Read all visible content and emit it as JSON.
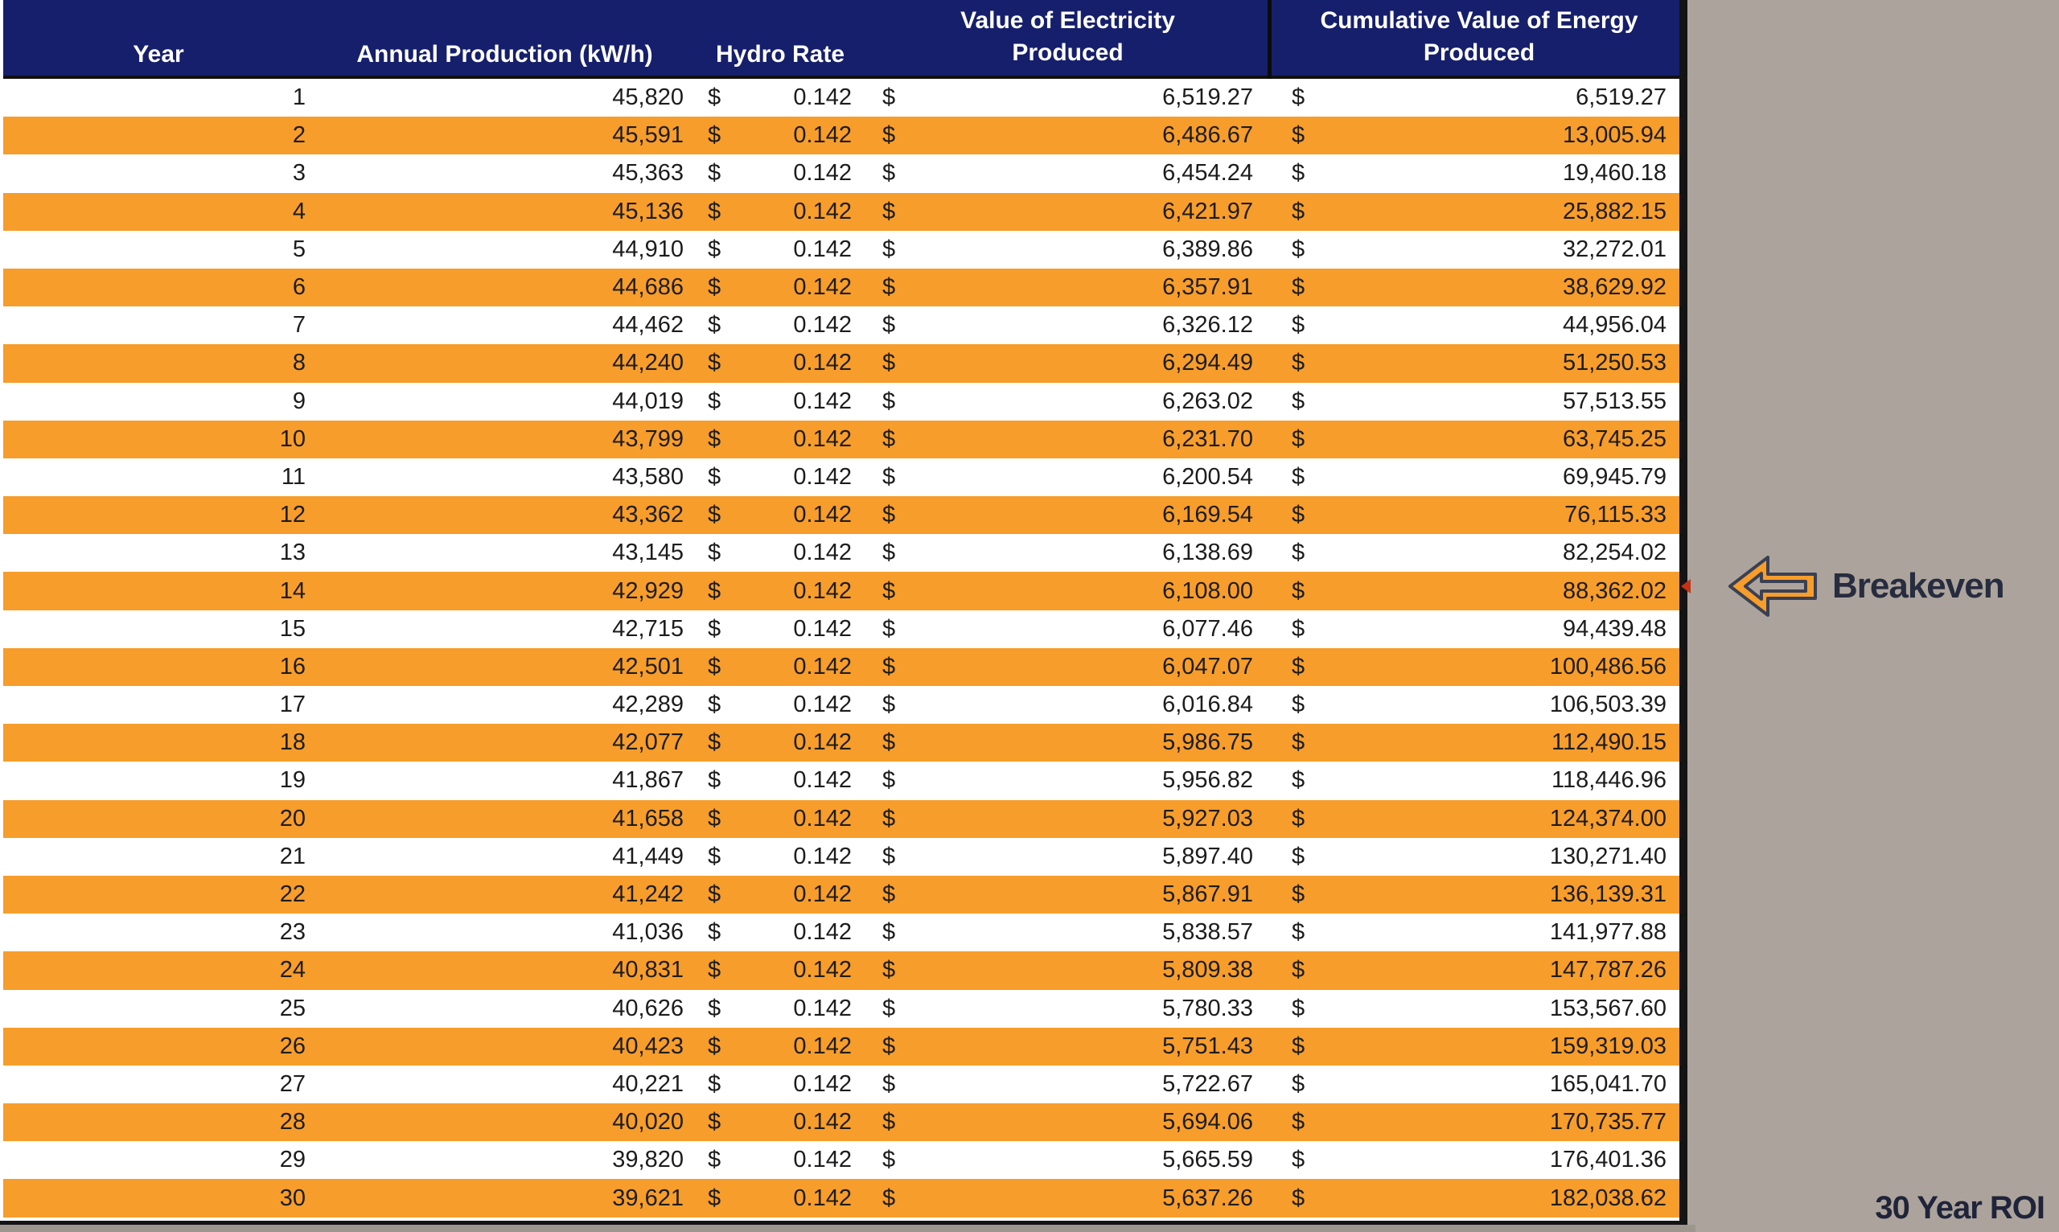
{
  "page": {
    "background_color": "#ACA49C"
  },
  "table": {
    "columns": [
      "Year",
      "Annual Production (kW/h)",
      "Hydro Rate",
      "Value of Electricity\nProduced",
      "Cumulative Value of Energy\nProduced"
    ],
    "currency_symbol": "$",
    "colors": {
      "header_bg": "#161F6B",
      "header_text": "#FFFFFF",
      "row_stripe": "#F79D2B",
      "row_base": "#FFFFFF",
      "border": "#141414"
    },
    "rows": [
      {
        "year": "1",
        "production": "45,820",
        "rate": "0.142",
        "value": "6,519.27",
        "cumulative": "6,519.27"
      },
      {
        "year": "2",
        "production": "45,591",
        "rate": "0.142",
        "value": "6,486.67",
        "cumulative": "13,005.94"
      },
      {
        "year": "3",
        "production": "45,363",
        "rate": "0.142",
        "value": "6,454.24",
        "cumulative": "19,460.18"
      },
      {
        "year": "4",
        "production": "45,136",
        "rate": "0.142",
        "value": "6,421.97",
        "cumulative": "25,882.15"
      },
      {
        "year": "5",
        "production": "44,910",
        "rate": "0.142",
        "value": "6,389.86",
        "cumulative": "32,272.01"
      },
      {
        "year": "6",
        "production": "44,686",
        "rate": "0.142",
        "value": "6,357.91",
        "cumulative": "38,629.92"
      },
      {
        "year": "7",
        "production": "44,462",
        "rate": "0.142",
        "value": "6,326.12",
        "cumulative": "44,956.04"
      },
      {
        "year": "8",
        "production": "44,240",
        "rate": "0.142",
        "value": "6,294.49",
        "cumulative": "51,250.53"
      },
      {
        "year": "9",
        "production": "44,019",
        "rate": "0.142",
        "value": "6,263.02",
        "cumulative": "57,513.55"
      },
      {
        "year": "10",
        "production": "43,799",
        "rate": "0.142",
        "value": "6,231.70",
        "cumulative": "63,745.25"
      },
      {
        "year": "11",
        "production": "43,580",
        "rate": "0.142",
        "value": "6,200.54",
        "cumulative": "69,945.79"
      },
      {
        "year": "12",
        "production": "43,362",
        "rate": "0.142",
        "value": "6,169.54",
        "cumulative": "76,115.33"
      },
      {
        "year": "13",
        "production": "43,145",
        "rate": "0.142",
        "value": "6,138.69",
        "cumulative": "82,254.02"
      },
      {
        "year": "14",
        "production": "42,929",
        "rate": "0.142",
        "value": "6,108.00",
        "cumulative": "88,362.02"
      },
      {
        "year": "15",
        "production": "42,715",
        "rate": "0.142",
        "value": "6,077.46",
        "cumulative": "94,439.48"
      },
      {
        "year": "16",
        "production": "42,501",
        "rate": "0.142",
        "value": "6,047.07",
        "cumulative": "100,486.56"
      },
      {
        "year": "17",
        "production": "42,289",
        "rate": "0.142",
        "value": "6,016.84",
        "cumulative": "106,503.39"
      },
      {
        "year": "18",
        "production": "42,077",
        "rate": "0.142",
        "value": "5,986.75",
        "cumulative": "112,490.15"
      },
      {
        "year": "19",
        "production": "41,867",
        "rate": "0.142",
        "value": "5,956.82",
        "cumulative": "118,446.96"
      },
      {
        "year": "20",
        "production": "41,658",
        "rate": "0.142",
        "value": "5,927.03",
        "cumulative": "124,374.00"
      },
      {
        "year": "21",
        "production": "41,449",
        "rate": "0.142",
        "value": "5,897.40",
        "cumulative": "130,271.40"
      },
      {
        "year": "22",
        "production": "41,242",
        "rate": "0.142",
        "value": "5,867.91",
        "cumulative": "136,139.31"
      },
      {
        "year": "23",
        "production": "41,036",
        "rate": "0.142",
        "value": "5,838.57",
        "cumulative": "141,977.88"
      },
      {
        "year": "24",
        "production": "40,831",
        "rate": "0.142",
        "value": "5,809.38",
        "cumulative": "147,787.26"
      },
      {
        "year": "25",
        "production": "40,626",
        "rate": "0.142",
        "value": "5,780.33",
        "cumulative": "153,567.60"
      },
      {
        "year": "26",
        "production": "40,423",
        "rate": "0.142",
        "value": "5,751.43",
        "cumulative": "159,319.03"
      },
      {
        "year": "27",
        "production": "40,221",
        "rate": "0.142",
        "value": "5,722.67",
        "cumulative": "165,041.70"
      },
      {
        "year": "28",
        "production": "40,020",
        "rate": "0.142",
        "value": "5,694.06",
        "cumulative": "170,735.77"
      },
      {
        "year": "29",
        "production": "39,820",
        "rate": "0.142",
        "value": "5,665.59",
        "cumulative": "176,401.36"
      },
      {
        "year": "30",
        "production": "39,621",
        "rate": "0.142",
        "value": "5,637.26",
        "cumulative": "182,038.62"
      }
    ]
  },
  "annotations": {
    "breakeven_label": "Breakeven",
    "roi_label": "30 Year ROI",
    "arrow_color": "#F79D2B",
    "arrow_outline_color": "#3A4053",
    "label_text_color": "#272C3F"
  }
}
